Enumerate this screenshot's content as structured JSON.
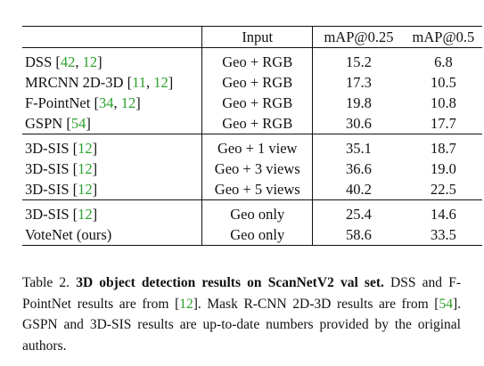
{
  "table": {
    "headers": {
      "method": "",
      "input": "Input",
      "map25": "mAP@0.25",
      "map5": "mAP@0.5"
    },
    "groups": [
      [
        {
          "name": "DSS ",
          "cites": [
            "42",
            "12"
          ],
          "input": "Geo + RGB",
          "map25": "15.2",
          "map5": "6.8"
        },
        {
          "name": "MRCNN 2D-3D ",
          "cites": [
            "11",
            "12"
          ],
          "input": "Geo + RGB",
          "map25": "17.3",
          "map5": "10.5"
        },
        {
          "name": "F-PointNet ",
          "cites": [
            "34",
            "12"
          ],
          "input": "Geo + RGB",
          "map25": "19.8",
          "map5": "10.8"
        },
        {
          "name": "GSPN ",
          "cites": [
            "54"
          ],
          "input": "Geo + RGB",
          "map25": "30.6",
          "map5": "17.7"
        }
      ],
      [
        {
          "name": "3D-SIS ",
          "cites": [
            "12"
          ],
          "input": "Geo + 1 view",
          "map25": "35.1",
          "map5": "18.7"
        },
        {
          "name": "3D-SIS ",
          "cites": [
            "12"
          ],
          "input": "Geo + 3 views",
          "map25": "36.6",
          "map5": "19.0"
        },
        {
          "name": "3D-SIS ",
          "cites": [
            "12"
          ],
          "input": "Geo + 5 views",
          "map25": "40.2",
          "map5": "22.5"
        }
      ],
      [
        {
          "name": "3D-SIS ",
          "cites": [
            "12"
          ],
          "input": "Geo only",
          "map25": "25.4",
          "map5": "14.6"
        },
        {
          "name": "VoteNet (ours)",
          "cites": [],
          "input": "Geo only",
          "map25": "58.6",
          "map5": "33.5",
          "bold": true
        }
      ]
    ]
  },
  "caption": {
    "label": "Table 2. ",
    "title": "3D object detection results on ScanNetV2 val set.",
    "text1": " DSS and F-PointNet results are from [",
    "cite1": "12",
    "text2": "]. Mask R-CNN 2D-3D results are from [",
    "cite2": "54",
    "text3": "]. GSPN and 3D-SIS results are up-to-date numbers provided by the original authors."
  },
  "colors": {
    "citation": "#2ca02c",
    "text": "#111111"
  }
}
